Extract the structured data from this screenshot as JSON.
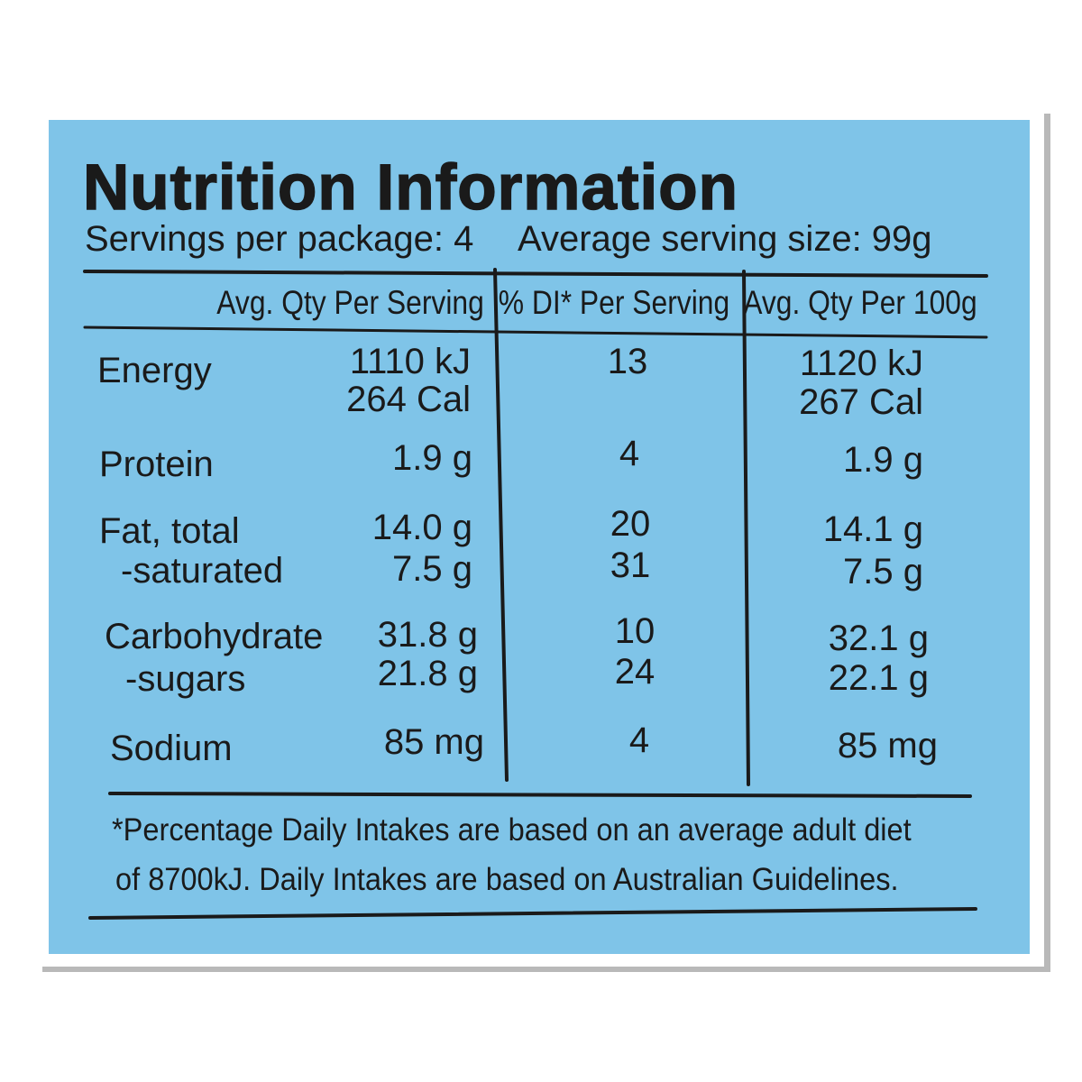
{
  "title": "Nutrition Information",
  "servings_per_package": "Servings per package: 4",
  "average_serving_size": "Average serving size: 99g",
  "columns": {
    "per_serving": "Avg. Qty Per Serving",
    "di_per_serving": "% DI* Per Serving",
    "per_100g": "Avg. Qty Per 100g"
  },
  "rows": [
    {
      "name": "Energy",
      "per_serving": "1110 kJ",
      "di": "13",
      "per_100g": "1120 kJ"
    },
    {
      "name": "",
      "per_serving": "264 Cal",
      "di": "",
      "per_100g": "267 Cal"
    },
    {
      "name": "Protein",
      "per_serving": "1.9 g",
      "di": "4",
      "per_100g": "1.9 g"
    },
    {
      "name": "Fat, total",
      "per_serving": "14.0 g",
      "di": "20",
      "per_100g": "14.1 g"
    },
    {
      "name": "-saturated",
      "per_serving": "7.5 g",
      "di": "31",
      "per_100g": "7.5 g"
    },
    {
      "name": "Carbohydrate",
      "per_serving": "31.8 g",
      "di": "10",
      "per_100g": "32.1 g"
    },
    {
      "name": "-sugars",
      "per_serving": "21.8 g",
      "di": "24",
      "per_100g": "22.1 g"
    },
    {
      "name": "Sodium",
      "per_serving": "85 mg",
      "di": "4",
      "per_100g": "85 mg"
    }
  ],
  "footnote": {
    "line1": "*Percentage Daily Intakes are based on an average adult diet",
    "line2": "of 8700kJ. Daily Intakes are based on Australian Guidelines."
  },
  "colors": {
    "label_background": "#7fc4e8",
    "text": "#1a1a1a"
  }
}
